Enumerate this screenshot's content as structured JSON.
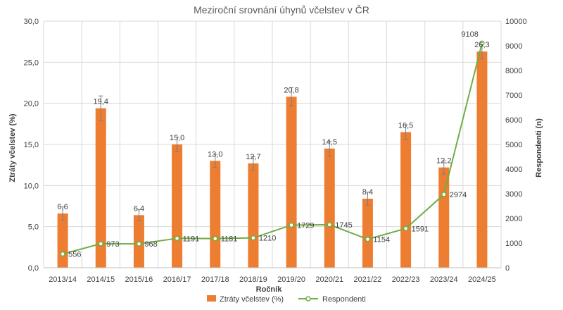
{
  "chart_data": {
    "type": "bar+line",
    "title": "Meziroční srovnání úhynů včelstev v ČR",
    "xlabel": "Ročník",
    "ylabel": "Ztráty včelstev (%)",
    "y2label": "Respondenti (n)",
    "categories": [
      "2013/14",
      "2014/15",
      "2015/16",
      "2016/17",
      "2017/18",
      "2018/19",
      "2019/20",
      "2020/21",
      "2021/22",
      "2022/23",
      "2023/24",
      "2024/25"
    ],
    "ylim": [
      0,
      30
    ],
    "y2lim": [
      0,
      10000
    ],
    "yticks": [
      "0,0",
      "5,0",
      "10,0",
      "15,0",
      "20,0",
      "25,0",
      "30,0"
    ],
    "y2ticks": [
      "0",
      "1000",
      "2000",
      "3000",
      "4000",
      "5000",
      "6000",
      "7000",
      "8000",
      "9000",
      "10000"
    ],
    "grid": true,
    "legend_position": "bottom",
    "series": [
      {
        "name": "Ztráty včelstev (%)",
        "type": "bar",
        "axis": "left",
        "color": "#ED7D31",
        "values": [
          6.6,
          19.4,
          6.4,
          15.0,
          13.0,
          12.7,
          20.8,
          14.5,
          8.4,
          16.5,
          12.2,
          26.3
        ],
        "labels": [
          "6,6",
          "19,4",
          "6,4",
          "15,0",
          "13,0",
          "12,7",
          "20,8",
          "14,5",
          "8,4",
          "16,5",
          "12,2",
          "26,3"
        ],
        "error": [
          0.8,
          1.5,
          0.7,
          0.9,
          0.8,
          0.8,
          1.1,
          0.9,
          0.8,
          0.9,
          0.8,
          0.9
        ]
      },
      {
        "name": "Respondenti",
        "type": "line",
        "axis": "right",
        "color": "#70AD47",
        "values": [
          556,
          973,
          968,
          1191,
          1181,
          1210,
          1729,
          1745,
          1154,
          1591,
          2974,
          9108
        ],
        "labels": [
          "556",
          "973",
          "968",
          "1191",
          "1181",
          "1210",
          "1729",
          "1745",
          "1154",
          "1591",
          "2974",
          "9108"
        ]
      }
    ]
  }
}
